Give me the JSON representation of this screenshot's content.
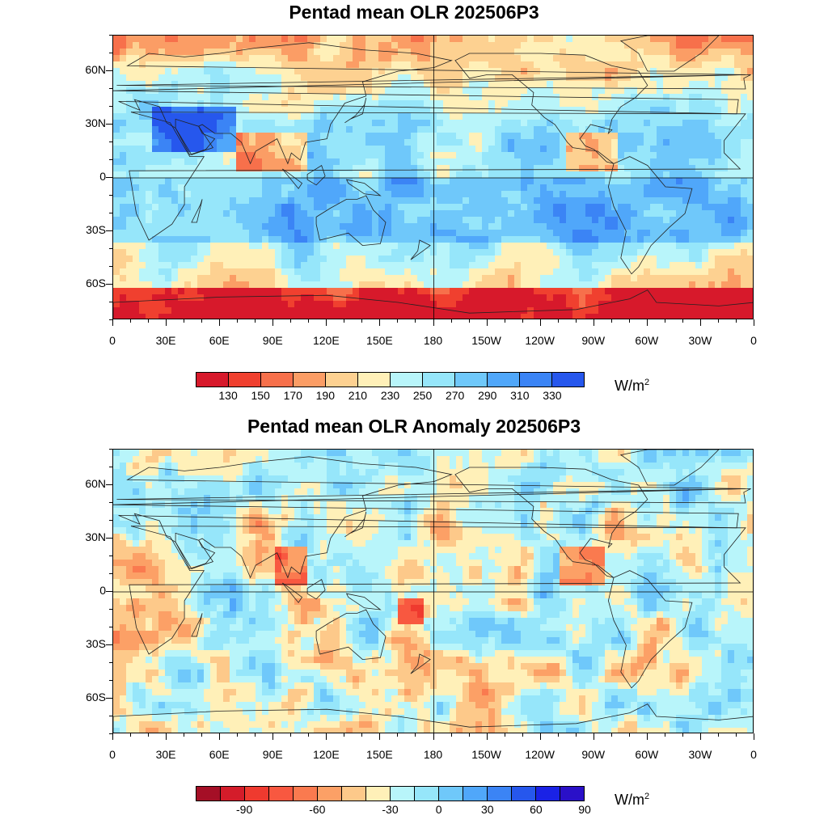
{
  "panels": [
    {
      "title": "Pentad mean OLR 202506P3",
      "unit_base": "W/m",
      "unit_exp": "2",
      "colorbar": {
        "colors": [
          "#d7192b",
          "#f0402f",
          "#f7704b",
          "#fb9d65",
          "#fdd191",
          "#fff0b8",
          "#b8f5fa",
          "#96e6fa",
          "#6fc8fa",
          "#50a7fa",
          "#3b84f5",
          "#2657ed"
        ],
        "labels": [
          "130",
          "150",
          "170",
          "190",
          "210",
          "230",
          "250",
          "270",
          "290",
          "310",
          "330"
        ]
      },
      "map_style": "mean"
    },
    {
      "title": "Pentad mean OLR Anomaly 202506P3",
      "unit_base": "W/m",
      "unit_exp": "2",
      "colorbar": {
        "colors": [
          "#a50f26",
          "#d41c2a",
          "#ef3a2f",
          "#f85840",
          "#fa7a4f",
          "#fca066",
          "#fdc98a",
          "#fff0b8",
          "#b8f5fa",
          "#96e6fa",
          "#6fc8fa",
          "#50a7fa",
          "#3b84f5",
          "#2657ed",
          "#1a22e6",
          "#2a10c8"
        ],
        "labels": [
          "",
          "-90",
          "",
          "",
          "-60",
          "",
          "",
          "-30",
          "",
          "0",
          "",
          "30",
          "",
          "60",
          "",
          "90"
        ]
      },
      "map_style": "anomaly"
    }
  ],
  "lat_labels": [
    "60N",
    "30N",
    "0",
    "30S",
    "60S"
  ],
  "lat_values": [
    60,
    30,
    0,
    -30,
    -60
  ],
  "lon_labels": [
    "0",
    "30E",
    "60E",
    "90E",
    "120E",
    "150E",
    "180",
    "150W",
    "120W",
    "90W",
    "60W",
    "30W",
    "0"
  ],
  "lat_range": [
    -80,
    80
  ],
  "lon_range": [
    0,
    360
  ]
}
